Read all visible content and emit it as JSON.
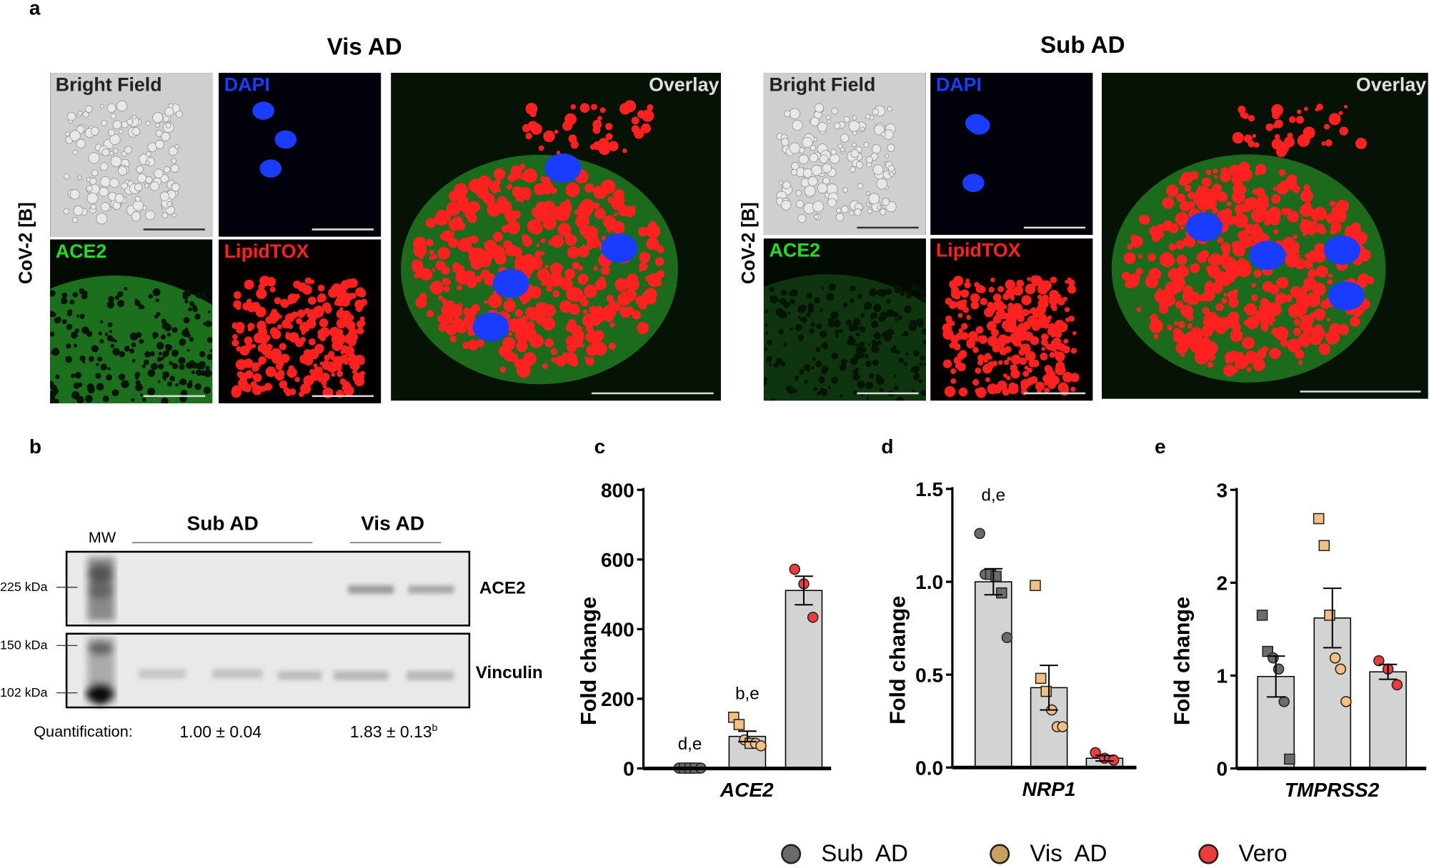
{
  "panel_letters": {
    "a": "a",
    "b": "b",
    "c": "c",
    "d": "d",
    "e": "e"
  },
  "panel_a": {
    "groups": [
      {
        "title": "Vis AD",
        "row_label": "CoV-2 [B]",
        "tiles": [
          "Bright Field",
          "DAPI",
          "ACE2",
          "LipidTOX",
          "Overlay"
        ]
      },
      {
        "title": "Sub AD",
        "row_label": "CoV-2 [B]",
        "tiles": [
          "Bright Field",
          "DAPI",
          "ACE2",
          "LipidTOX",
          "Overlay"
        ]
      }
    ],
    "colors": {
      "dapi": "#1a3cff",
      "ace2": "#22dd22",
      "lipidtox": "#ff2020",
      "bright_field": "#cfcfcf",
      "overlay": "#ffffff"
    }
  },
  "panel_b": {
    "mw_label": "MW",
    "group_labels": [
      "Sub AD",
      "Vis AD"
    ],
    "markers": [
      "225 kDa",
      "150 kDa",
      "102 kDa"
    ],
    "bands": [
      "ACE2",
      "Vinculin"
    ],
    "quantification_label": "Quantification:",
    "quant_values": [
      "1.00 ± 0.04",
      "1.83 ± 0.13"
    ],
    "quant_superscript": "b"
  },
  "chart_data": [
    {
      "type": "bar",
      "panel": "c",
      "xlabel": "ACE2",
      "ylabel": "Fold change",
      "ylim": [
        0,
        800
      ],
      "yticks": [
        "0",
        "200",
        "400",
        "600",
        "800"
      ],
      "categories": [
        "Sub AD",
        "Vis AD",
        "Vero"
      ],
      "values": [
        1,
        92,
        511
      ],
      "sem": [
        1,
        15,
        41
      ],
      "annotations": [
        "d,e",
        "b,e",
        ""
      ],
      "points": [
        [
          {
            "s": "circle",
            "v": 1
          },
          {
            "s": "square",
            "v": 1
          },
          {
            "s": "square",
            "v": 1
          },
          {
            "s": "square",
            "v": 1
          },
          {
            "s": "circle",
            "v": 1
          }
        ],
        [
          {
            "s": "square",
            "v": 147
          },
          {
            "s": "square",
            "v": 126
          },
          {
            "s": "circle",
            "v": 82
          },
          {
            "s": "square",
            "v": 72
          },
          {
            "s": "circle",
            "v": 72
          },
          {
            "s": "circle",
            "v": 65
          }
        ],
        [
          {
            "s": "circle",
            "v": 572
          },
          {
            "s": "circle",
            "v": 530
          },
          {
            "s": "circle",
            "v": 434
          }
        ]
      ]
    },
    {
      "type": "bar",
      "panel": "d",
      "xlabel": "NRP1",
      "ylabel": "Fold change",
      "ylim": [
        0,
        1.5
      ],
      "yticks": [
        "0.0",
        "0.5",
        "1.0",
        "1.5"
      ],
      "categories": [
        "Sub AD",
        "Vis AD",
        "Vero"
      ],
      "values": [
        1.0,
        0.43,
        0.05
      ],
      "sem": [
        0.07,
        0.12,
        0.015
      ],
      "annotations": [
        "d,e",
        "",
        ""
      ],
      "points": [
        [
          {
            "s": "circle",
            "v": 1.26
          },
          {
            "s": "circle",
            "v": 1.04
          },
          {
            "s": "square",
            "v": 1.04
          },
          {
            "s": "square",
            "v": 1.03
          },
          {
            "s": "square",
            "v": 0.94
          },
          {
            "s": "circle",
            "v": 0.7
          }
        ],
        [
          {
            "s": "square",
            "v": 0.98
          },
          {
            "s": "square",
            "v": 0.48
          },
          {
            "s": "square",
            "v": 0.41
          },
          {
            "s": "circle",
            "v": 0.31
          },
          {
            "s": "circle",
            "v": 0.22
          },
          {
            "s": "circle",
            "v": 0.22
          }
        ],
        [
          {
            "s": "circle",
            "v": 0.08
          },
          {
            "s": "circle",
            "v": 0.05
          },
          {
            "s": "circle",
            "v": 0.04
          }
        ]
      ]
    },
    {
      "type": "bar",
      "panel": "e",
      "xlabel": "TMPRSS2",
      "ylabel": "Fold change",
      "ylim": [
        0,
        3
      ],
      "yticks": [
        "0",
        "1",
        "2",
        "3"
      ],
      "categories": [
        "Sub AD",
        "Vis AD",
        "Vero"
      ],
      "values": [
        0.99,
        1.62,
        1.04
      ],
      "sem": [
        0.22,
        0.32,
        0.08
      ],
      "annotations": [
        "",
        "",
        ""
      ],
      "points": [
        [
          {
            "s": "square",
            "v": 1.65
          },
          {
            "s": "square",
            "v": 1.26
          },
          {
            "s": "circle",
            "v": 1.19
          },
          {
            "s": "circle",
            "v": 1.07
          },
          {
            "s": "circle",
            "v": 0.72
          },
          {
            "s": "square",
            "v": 0.1
          }
        ],
        [
          {
            "s": "square",
            "v": 2.69
          },
          {
            "s": "square",
            "v": 2.4
          },
          {
            "s": "square",
            "v": 1.65
          },
          {
            "s": "circle",
            "v": 1.19
          },
          {
            "s": "circle",
            "v": 1.07
          },
          {
            "s": "circle",
            "v": 0.72
          }
        ],
        [
          {
            "s": "circle",
            "v": 1.16
          },
          {
            "s": "circle",
            "v": 1.07
          },
          {
            "s": "circle",
            "v": 0.9
          }
        ]
      ]
    }
  ],
  "legend": {
    "items": [
      {
        "label": "Sub  AD",
        "color": "#6b6b6b"
      },
      {
        "label": "Vis  AD",
        "color": "#c9a15e"
      },
      {
        "label": "Vero",
        "color": "#ee3b3b"
      }
    ],
    "point_colors": [
      "#6b6b6b",
      "#f3c083",
      "#ee3b3b"
    ],
    "bar_fill": "#d3d3d3"
  }
}
